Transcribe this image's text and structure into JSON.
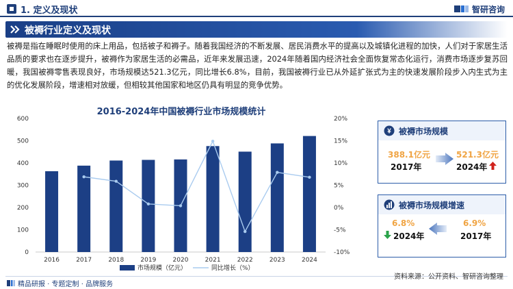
{
  "header": {
    "section_title": "1. 定义及现状",
    "logo_text": "智研咨询"
  },
  "banner": {
    "title": "被褥行业定义及现状"
  },
  "paragraph": "被褥是指在睡眠时使用的床上用品，包括被子和褥子。随着我国经济的不断发展、居民消费水平的提高以及城镇化进程的加快，人们对于家居生活品质的要求也在逐步提升，被褥作为家居生活的必需品，近年来发展迅速，2024年随着国内经济社会全面恢复常态化运行，消费市场逐步复苏回暖，我国被褥零售表现良好，市场规模达521.3亿元，同比增长6.8%，目前，我国被褥行业已从外延扩张式为主的快速发展阶段步入内生式为主的优化发展阶段，增速相对放缓，但相较其他国家和地区仍具有明显的竞争优势。",
  "chart_data": {
    "type": "bar",
    "title": "2016-2024年中国被褥行业市场规模统计",
    "categories": [
      "2016",
      "2017",
      "2018",
      "2019",
      "2020",
      "2021",
      "2022",
      "2023",
      "2024"
    ],
    "series": [
      {
        "name": "市场规模（亿元）",
        "type": "bar",
        "axis": "left",
        "values": [
          363,
          388.1,
          411,
          414,
          416,
          476,
          451,
          488,
          521.3
        ]
      },
      {
        "name": "同比增长（%）",
        "type": "line",
        "axis": "right",
        "values": [
          null,
          6.9,
          5.9,
          0.8,
          0.4,
          14.9,
          -5.4,
          7.9,
          6.8
        ]
      }
    ],
    "left_axis": {
      "min": 0,
      "max": 600,
      "ticks": [
        "0",
        "100",
        "200",
        "300",
        "400",
        "500",
        "600"
      ]
    },
    "right_axis": {
      "min": -10,
      "max": 20,
      "ticks": [
        "-10%",
        "-5%",
        "0%",
        "5%",
        "10%",
        "15%",
        "20%"
      ]
    },
    "grid": false,
    "legend_position": "bottom",
    "colors": {
      "bar": "#1c3f85",
      "line": "#a9cbef"
    }
  },
  "card1": {
    "title": "被褥市场规模",
    "left_value": "388.1亿元",
    "left_year": "2017年",
    "right_value": "521.3亿元",
    "right_year": "2024年",
    "trend": "up",
    "trend_color": "#d0221c"
  },
  "card2": {
    "title": "被褥市场规模增速",
    "left_value": "6.8%",
    "left_year": "2024年",
    "right_value": "6.9%",
    "right_year": "2017年",
    "trend": "down",
    "trend_color": "#2aa34a"
  },
  "footer": {
    "left": "精品研报 · 专题定制 · 品牌服务",
    "source": "资料来源：公开资料、智研咨询整理"
  },
  "colors": {
    "brand": "#1f3f7a",
    "accent_orange": "#f0a443"
  }
}
